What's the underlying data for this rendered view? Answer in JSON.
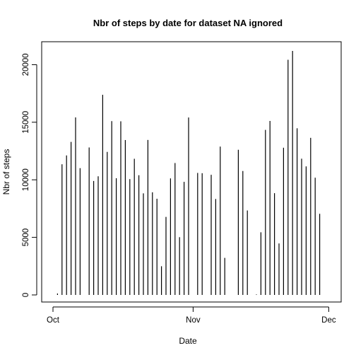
{
  "chart_data": {
    "type": "bar",
    "style": "histogram-spikes",
    "title": "Nbr of steps by date for dataset NA ignored",
    "xlabel": "Date",
    "ylabel": "Nbr of steps",
    "xlim": [
      "2012-10-01",
      "2012-11-30"
    ],
    "ylim": [
      0,
      21194
    ],
    "x_ticks": [
      {
        "label": "Oct",
        "value": "2012-10-01"
      },
      {
        "label": "Nov",
        "value": "2012-11-01"
      },
      {
        "label": "Dec",
        "value": "2012-12-01"
      }
    ],
    "y_ticks": [
      0,
      5000,
      10000,
      15000,
      20000
    ],
    "grid": false,
    "x": [
      "2012-10-02",
      "2012-10-03",
      "2012-10-04",
      "2012-10-05",
      "2012-10-06",
      "2012-10-07",
      "2012-10-09",
      "2012-10-10",
      "2012-10-11",
      "2012-10-12",
      "2012-10-13",
      "2012-10-14",
      "2012-10-15",
      "2012-10-16",
      "2012-10-17",
      "2012-10-18",
      "2012-10-19",
      "2012-10-20",
      "2012-10-21",
      "2012-10-22",
      "2012-10-23",
      "2012-10-24",
      "2012-10-25",
      "2012-10-26",
      "2012-10-27",
      "2012-10-28",
      "2012-10-29",
      "2012-10-30",
      "2012-10-31",
      "2012-11-02",
      "2012-11-03",
      "2012-11-05",
      "2012-11-06",
      "2012-11-07",
      "2012-11-08",
      "2012-11-11",
      "2012-11-12",
      "2012-11-13",
      "2012-11-15",
      "2012-11-16",
      "2012-11-17",
      "2012-11-18",
      "2012-11-19",
      "2012-11-20",
      "2012-11-21",
      "2012-11-22",
      "2012-11-23",
      "2012-11-24",
      "2012-11-25",
      "2012-11-26",
      "2012-11-27",
      "2012-11-28",
      "2012-11-29"
    ],
    "values": [
      126,
      11352,
      12116,
      13294,
      15420,
      11015,
      12811,
      9900,
      10304,
      17382,
      12426,
      15098,
      10139,
      15084,
      13452,
      10056,
      11829,
      10395,
      8821,
      13460,
      8918,
      8355,
      2492,
      6778,
      10119,
      11458,
      5018,
      9819,
      15414,
      10600,
      10571,
      10439,
      8334,
      12883,
      3219,
      12608,
      10765,
      7336,
      41,
      5441,
      14339,
      15110,
      8841,
      4472,
      12787,
      20427,
      21194,
      14478,
      11834,
      11162,
      13646,
      10183,
      7047
    ]
  }
}
